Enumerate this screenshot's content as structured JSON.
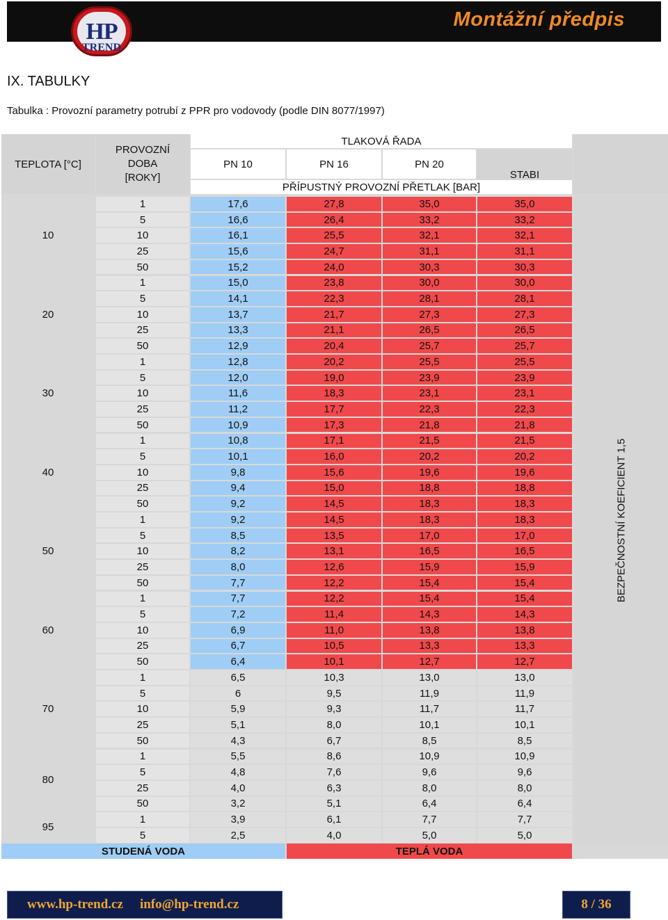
{
  "header": {
    "logo_hp": "HP",
    "logo_trend": "TREND",
    "title": "Montážní předpis"
  },
  "section_title": "IX. TABULKY",
  "table_caption": "Tabulka : Provozní parametry potrubí z PPR pro vodovody (podle DIN 8077/1997)",
  "table": {
    "col_temperature": "TEPLOTA [°C]",
    "col_duration_1": "PROVOZNÍ",
    "col_duration_2": "DOBA",
    "col_duration_3": "[ROKY]",
    "group_header": "TLAKOVÁ ŘADA",
    "pn10": "PN 10",
    "pn16": "PN 16",
    "pn20": "PN 20",
    "stabi": "STABI",
    "pressure_label": "PŘÍPUSTNÝ PROVOZNÍ PŘETLAK  [BAR]",
    "side_note": "BEZPEČNOSTNÍ KOEFICIENT 1,5",
    "cold_water": "STUDENÁ VODA",
    "hot_water": "TEPLÁ VODA",
    "groups": [
      {
        "temp": "10",
        "rows": [
          [
            "1",
            "17,6",
            "27,8",
            "35,0",
            "35,0"
          ],
          [
            "5",
            "16,6",
            "26,4",
            "33,2",
            "33,2"
          ],
          [
            "10",
            "16,1",
            "25,5",
            "32,1",
            "32,1"
          ],
          [
            "25",
            "15,6",
            "24,7",
            "31,1",
            "31,1"
          ],
          [
            "50",
            "15,2",
            "24,0",
            "30,3",
            "30,3"
          ]
        ]
      },
      {
        "temp": "20",
        "rows": [
          [
            "1",
            "15,0",
            "23,8",
            "30,0",
            "30,0"
          ],
          [
            "5",
            "14,1",
            "22,3",
            "28,1",
            "28,1"
          ],
          [
            "10",
            "13,7",
            "21,7",
            "27,3",
            "27,3"
          ],
          [
            "25",
            "13,3",
            "21,1",
            "26,5",
            "26,5"
          ],
          [
            "50",
            "12,9",
            "20,4",
            "25,7",
            "25,7"
          ]
        ]
      },
      {
        "temp": "30",
        "rows": [
          [
            "1",
            "12,8",
            "20,2",
            "25,5",
            "25,5"
          ],
          [
            "5",
            "12,0",
            "19,0",
            "23,9",
            "23,9"
          ],
          [
            "10",
            "11,6",
            "18,3",
            "23,1",
            "23,1"
          ],
          [
            "25",
            "11,2",
            "17,7",
            "22,3",
            "22,3"
          ],
          [
            "50",
            "10,9",
            "17,3",
            "21,8",
            "21,8"
          ]
        ]
      },
      {
        "temp": "40",
        "rows": [
          [
            "1",
            "10,8",
            "17,1",
            "21,5",
            "21,5"
          ],
          [
            "5",
            "10,1",
            "16,0",
            "20,2",
            "20,2"
          ],
          [
            "10",
            "9,8",
            "15,6",
            "19,6",
            "19,6"
          ],
          [
            "25",
            "9,4",
            "15,0",
            "18,8",
            "18,8"
          ],
          [
            "50",
            "9,2",
            "14,5",
            "18,3",
            "18,3"
          ]
        ]
      },
      {
        "temp": "50",
        "rows": [
          [
            "1",
            "9,2",
            "14,5",
            "18,3",
            "18,3"
          ],
          [
            "5",
            "8,5",
            "13,5",
            "17,0",
            "17,0"
          ],
          [
            "10",
            "8,2",
            "13,1",
            "16,5",
            "16,5"
          ],
          [
            "25",
            "8,0",
            "12,6",
            "15,9",
            "15,9"
          ],
          [
            "50",
            "7,7",
            "12,2",
            "15,4",
            "15,4"
          ]
        ]
      },
      {
        "temp": "60",
        "rows": [
          [
            "1",
            "7,7",
            "12,2",
            "15,4",
            "15,4"
          ],
          [
            "5",
            "7,2",
            "11,4",
            "14,3",
            "14,3"
          ],
          [
            "10",
            "6,9",
            "11,0",
            "13,8",
            "13,8"
          ],
          [
            "25",
            "6,7",
            "10,5",
            "13,3",
            "13,3"
          ],
          [
            "50",
            "6,4",
            "10,1",
            "12,7",
            "12,7"
          ]
        ]
      },
      {
        "temp": "70",
        "rows": [
          [
            "1",
            "6,5",
            "10,3",
            "13,0",
            "13,0"
          ],
          [
            "5",
            "6",
            "9,5",
            "11,9",
            "11,9"
          ],
          [
            "10",
            "5,9",
            "9,3",
            "11,7",
            "11,7"
          ],
          [
            "25",
            "5,1",
            "8,0",
            "10,1",
            "10,1"
          ],
          [
            "50",
            "4,3",
            "6,7",
            "8,5",
            "8,5"
          ]
        ]
      },
      {
        "temp": "80",
        "rows": [
          [
            "1",
            "5,5",
            "8,6",
            "10,9",
            "10,9"
          ],
          [
            "5",
            "4,8",
            "7,6",
            "9,6",
            "9,6"
          ],
          [
            "25",
            "4,0",
            "6,3",
            "8,0",
            "8,0"
          ],
          [
            "50",
            "3,2",
            "5,1",
            "6,4",
            "6,4"
          ]
        ]
      },
      {
        "temp": "95",
        "rows": [
          [
            "1",
            "3,9",
            "6,1",
            "7,7",
            "7,7"
          ],
          [
            "5",
            "2,5",
            "4,0",
            "5,0",
            "5,0"
          ]
        ]
      }
    ],
    "colors": {
      "cold": "#9fcdf5",
      "hot": "#f0494b",
      "hot_light": "#f6b5b5",
      "neutral": "#dedede"
    }
  },
  "footer": {
    "website": "www.hp-trend.cz",
    "email": "info@hp-trend.cz",
    "page": "8 / 36"
  }
}
